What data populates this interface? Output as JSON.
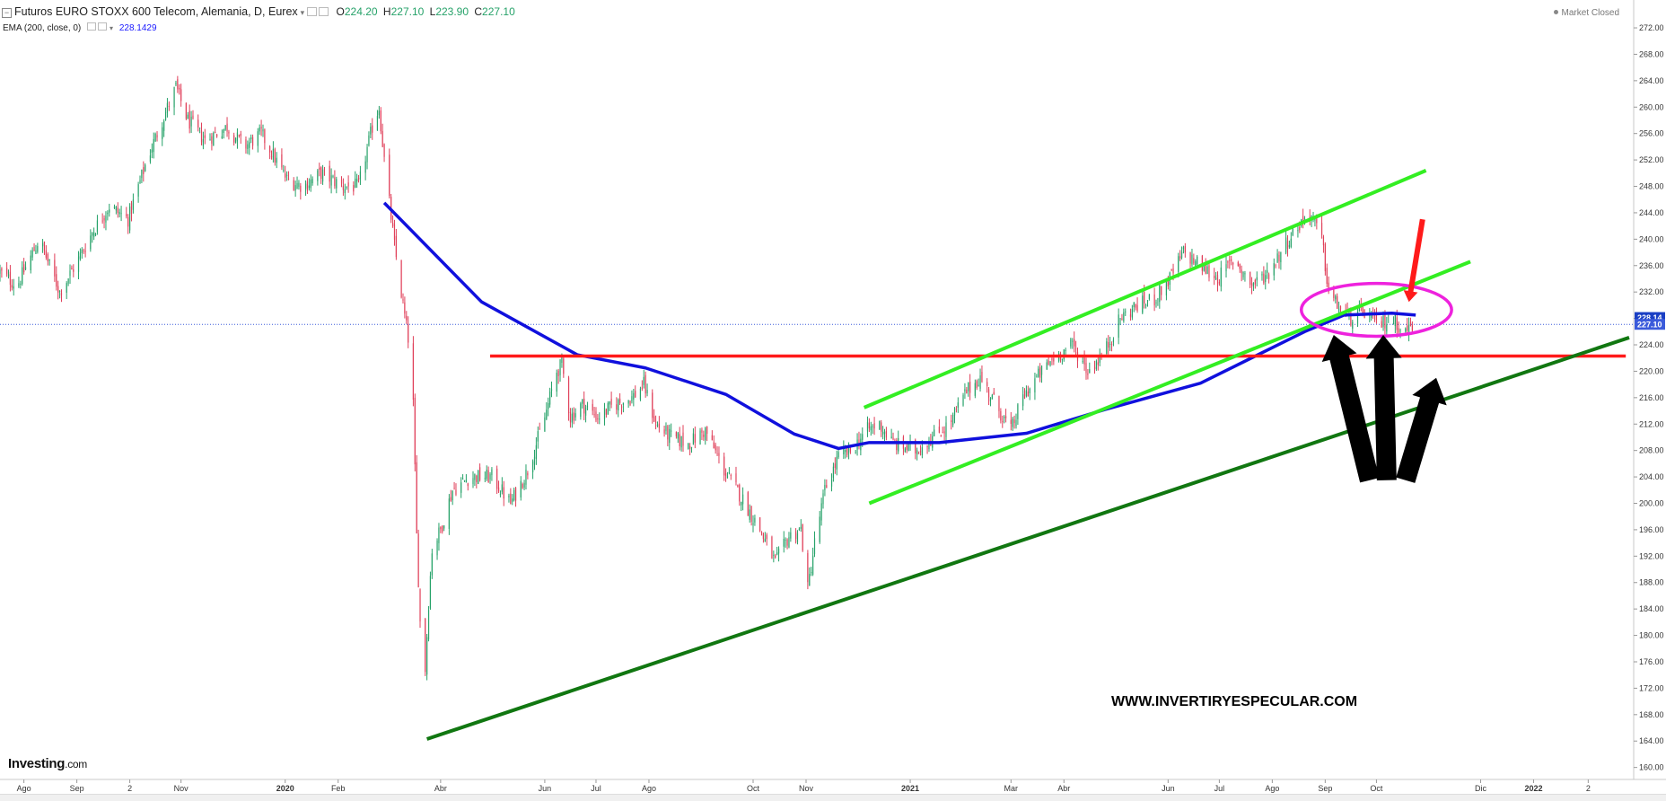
{
  "header": {
    "title": "Futuros EURO STOXX 600 Telecom, Alemania, D, Eurex",
    "ohlc": [
      {
        "label": "O",
        "value": "224.20"
      },
      {
        "label": "H",
        "value": "227.10"
      },
      {
        "label": "L",
        "value": "223.90"
      },
      {
        "label": "C",
        "value": "227.10"
      }
    ],
    "indicator_label": "EMA (200, close, 0)",
    "indicator_value": "228.1429"
  },
  "market_status": "Market Closed",
  "logo": {
    "name": "Investing",
    "suffix": ".com"
  },
  "watermark": "WWW.INVERTIRYESPECULAR.COM",
  "colors": {
    "up": "#26a269",
    "down": "#e0405a",
    "ema": "#1010dd",
    "support_red": "#ff1a1a",
    "channel_light": "#33ee22",
    "trend_dark": "#117711",
    "ellipse": "#ee22dd",
    "price_tag": "#3b5bdb",
    "ema_tag": "#1a3fc4"
  },
  "chart_data": {
    "type": "candlestick",
    "title": "Futuros EURO STOXX 600 Telecom, Alemania, D, Eurex",
    "ylim": [
      159,
      273.5
    ],
    "y_ticks": [
      "272.00",
      "268.00",
      "264.00",
      "260.00",
      "256.00",
      "252.00",
      "248.00",
      "244.00",
      "240.00",
      "236.00",
      "232.00",
      "228.00",
      "224.00",
      "220.00",
      "216.00",
      "212.00",
      "208.00",
      "204.00",
      "200.00",
      "196.00",
      "192.00",
      "188.00",
      "184.00",
      "180.00",
      "176.00",
      "172.00",
      "168.00",
      "164.00",
      "160.00"
    ],
    "x_ticks": [
      "Ago",
      "Sep",
      "2",
      "Nov",
      "2020",
      "Feb",
      "Abr",
      "Jun",
      "Jul",
      "Ago",
      "Oct",
      "Nov",
      "2021",
      "Mar",
      "Abr",
      "Jun",
      "Jul",
      "Ago",
      "Sep",
      "Oct",
      "Dic",
      "2022",
      "2"
    ],
    "x_range": [
      "2019-07-18",
      "2022-02-26"
    ],
    "price_path": [
      [
        "2019-07-18",
        235
      ],
      [
        "2019-07-28",
        233
      ],
      [
        "2019-08-10",
        240
      ],
      [
        "2019-08-22",
        232
      ],
      [
        "2019-09-02",
        237
      ],
      [
        "2019-09-10",
        241
      ],
      [
        "2019-09-20",
        245
      ],
      [
        "2019-10-01",
        243
      ],
      [
        "2019-10-12",
        252
      ],
      [
        "2019-10-21",
        258
      ],
      [
        "2019-10-29",
        263
      ],
      [
        "2019-11-05",
        258
      ],
      [
        "2019-11-15",
        255
      ],
      [
        "2019-11-28",
        257
      ],
      [
        "2019-12-08",
        254
      ],
      [
        "2019-12-18",
        256
      ],
      [
        "2020-01-02",
        249
      ],
      [
        "2020-01-12",
        248
      ],
      [
        "2020-01-22",
        250
      ],
      [
        "2020-02-04",
        248
      ],
      [
        "2020-02-13",
        248
      ],
      [
        "2020-02-21",
        257
      ],
      [
        "2020-02-25",
        260
      ],
      [
        "2020-02-28",
        252
      ],
      [
        "2020-03-05",
        239
      ],
      [
        "2020-03-10",
        230
      ],
      [
        "2020-03-13",
        225
      ],
      [
        "2020-03-16",
        215
      ],
      [
        "2020-03-18",
        195
      ],
      [
        "2020-03-20",
        182
      ],
      [
        "2020-03-23",
        175
      ],
      [
        "2020-03-25",
        185
      ],
      [
        "2020-03-27",
        193
      ],
      [
        "2020-04-01",
        196
      ],
      [
        "2020-04-08",
        202
      ],
      [
        "2020-04-18",
        204
      ],
      [
        "2020-05-01",
        204
      ],
      [
        "2020-05-12",
        200
      ],
      [
        "2020-05-22",
        205
      ],
      [
        "2020-06-01",
        213
      ],
      [
        "2020-06-08",
        220
      ],
      [
        "2020-06-11",
        221
      ],
      [
        "2020-06-16",
        213
      ],
      [
        "2020-06-23",
        215
      ],
      [
        "2020-07-02",
        213
      ],
      [
        "2020-07-12",
        215
      ],
      [
        "2020-07-22",
        216
      ],
      [
        "2020-07-29",
        218
      ],
      [
        "2020-08-05",
        212
      ],
      [
        "2020-08-14",
        210
      ],
      [
        "2020-08-24",
        209
      ],
      [
        "2020-09-03",
        211
      ],
      [
        "2020-09-14",
        205
      ],
      [
        "2020-09-24",
        201
      ],
      [
        "2020-10-05",
        196
      ],
      [
        "2020-10-14",
        191
      ],
      [
        "2020-10-22",
        195
      ],
      [
        "2020-10-29",
        196
      ],
      [
        "2020-11-02",
        187
      ],
      [
        "2020-11-06",
        194
      ],
      [
        "2020-11-12",
        202
      ],
      [
        "2020-11-20",
        207
      ],
      [
        "2020-11-28",
        208
      ],
      [
        "2020-12-06",
        211
      ],
      [
        "2020-12-14",
        212
      ],
      [
        "2020-12-22",
        209
      ],
      [
        "2021-01-04",
        208
      ],
      [
        "2021-01-14",
        210
      ],
      [
        "2021-01-24",
        212
      ],
      [
        "2021-02-03",
        217
      ],
      [
        "2021-02-11",
        219
      ],
      [
        "2021-02-20",
        215
      ],
      [
        "2021-03-01",
        211
      ],
      [
        "2021-03-08",
        216
      ],
      [
        "2021-03-16",
        219
      ],
      [
        "2021-03-26",
        222
      ],
      [
        "2021-04-06",
        224
      ],
      [
        "2021-04-15",
        220
      ],
      [
        "2021-04-25",
        223
      ],
      [
        "2021-05-04",
        228
      ],
      [
        "2021-05-14",
        230
      ],
      [
        "2021-05-24",
        231
      ],
      [
        "2021-06-02",
        234
      ],
      [
        "2021-06-10",
        238
      ],
      [
        "2021-06-20",
        236
      ],
      [
        "2021-06-30",
        234
      ],
      [
        "2021-07-10",
        237
      ],
      [
        "2021-07-20",
        233
      ],
      [
        "2021-07-30",
        235
      ],
      [
        "2021-08-08",
        239
      ],
      [
        "2021-08-16",
        242
      ],
      [
        "2021-08-23",
        244
      ],
      [
        "2021-08-30",
        240
      ],
      [
        "2021-09-03",
        232
      ],
      [
        "2021-09-08",
        230
      ],
      [
        "2021-09-16",
        228
      ],
      [
        "2021-09-24",
        229
      ],
      [
        "2021-10-02",
        227
      ],
      [
        "2021-10-10",
        228
      ],
      [
        "2021-10-18",
        226
      ],
      [
        "2021-10-22",
        227.1
      ]
    ],
    "series": [
      {
        "name": "EMA (200, close, 0)",
        "points": [
          [
            "2020-02-28",
            245.5
          ],
          [
            "2020-04-25",
            230.5
          ],
          [
            "2020-06-20",
            222.5
          ],
          [
            "2020-07-30",
            220.5
          ],
          [
            "2020-09-15",
            216.5
          ],
          [
            "2020-10-25",
            210.5
          ],
          [
            "2020-11-20",
            208.3
          ],
          [
            "2020-12-08",
            209.2
          ],
          [
            "2021-01-18",
            209.2
          ],
          [
            "2021-03-10",
            210.6
          ],
          [
            "2021-04-25",
            214.2
          ],
          [
            "2021-06-20",
            218.2
          ],
          [
            "2021-08-20",
            226.0
          ],
          [
            "2021-09-12",
            228.5
          ],
          [
            "2021-10-10",
            228.8
          ],
          [
            "2021-10-24",
            228.5
          ]
        ]
      }
    ],
    "current_price": 227.1,
    "ema_value": 228.14,
    "price_labels": [
      "228.14",
      "227.10"
    ],
    "annotations": [
      {
        "type": "line",
        "color": "support_red",
        "from": [
          "2020-04-30",
          222.3
        ],
        "to": [
          "2022-02-24",
          222.3
        ]
      },
      {
        "type": "line",
        "color": "channel_light",
        "from": [
          "2020-12-05",
          214.5
        ],
        "to": [
          "2021-10-30",
          250.4
        ]
      },
      {
        "type": "line",
        "color": "channel_light",
        "from": [
          "2020-12-08",
          200.0
        ],
        "to": [
          "2021-11-25",
          236.6
        ]
      },
      {
        "type": "line",
        "color": "trend_dark",
        "from": [
          "2020-03-24",
          164.3
        ],
        "to": [
          "2022-02-26",
          225.1
        ]
      },
      {
        "type": "ellipse",
        "color": "ellipse",
        "center": [
          "2021-10-01",
          229.3
        ],
        "radius_days": 44,
        "radius_price": 4.0
      },
      {
        "type": "arrow",
        "color": "support_red",
        "from": [
          "2021-10-28",
          243
        ],
        "to": [
          "2021-10-20",
          230.5
        ]
      },
      {
        "type": "arrow",
        "color": "#000000",
        "from": [
          "2021-09-27",
          203.5
        ],
        "to": [
          "2021-09-06",
          225.5
        ]
      },
      {
        "type": "arrow",
        "color": "#000000",
        "from": [
          "2021-10-07",
          203.5
        ],
        "to": [
          "2021-10-05",
          225.5
        ]
      },
      {
        "type": "arrow",
        "color": "#000000",
        "from": [
          "2021-10-18",
          203.5
        ],
        "to": [
          "2021-11-05",
          219
        ]
      }
    ],
    "grid": false,
    "legend": "top-left"
  }
}
